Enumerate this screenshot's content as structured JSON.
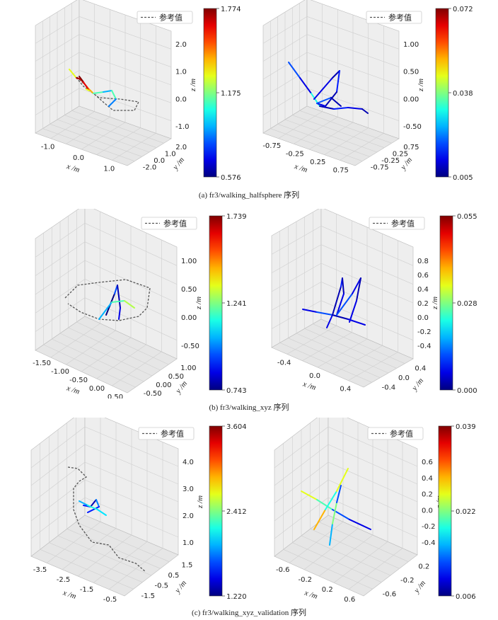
{
  "legend_label": "参考值",
  "axis_labels": {
    "x": "x /m",
    "y": "y /m",
    "z": "z /m"
  },
  "colors": {
    "reference": "#555555",
    "grid_fill": "#eeeeee",
    "grid_line": "#cfcfcf"
  },
  "captions": [
    "(a) fr3/walking_halfsphere 序列",
    "(b) fr3/walking_xyz 序列",
    "(c) fr3/walking_xyz_validation 序列"
  ],
  "chart_data": [
    {
      "type": "scatter",
      "title": "",
      "legend": [
        "参考值"
      ],
      "xticks": [
        "-1.0",
        "0.0",
        "1.0"
      ],
      "yticks": [
        "-2.0",
        "0.0",
        "1.0",
        "2.0"
      ],
      "zticks": [
        "-1.0",
        "0.0",
        "1.0",
        "2.0"
      ],
      "xlabel": "x /m",
      "ylabel": "y /m",
      "zlabel": "z /m",
      "colorbar": {
        "min": 0.576,
        "mid": 1.175,
        "max": 1.774,
        "ticks": [
          "1.774",
          "1.175",
          "0.576"
        ]
      }
    },
    {
      "type": "scatter",
      "title": "",
      "legend": [
        "参考值"
      ],
      "xticks": [
        "-0.75",
        "-0.25",
        "0.25",
        "0.75"
      ],
      "yticks": [
        "-0.75",
        "-0.25",
        "0.25",
        "0.75"
      ],
      "zticks": [
        "-0.50",
        "0.00",
        "0.50",
        "1.00"
      ],
      "xlabel": "x /m",
      "ylabel": "y /m",
      "zlabel": "z /m",
      "colorbar": {
        "min": 0.005,
        "mid": 0.038,
        "max": 0.072,
        "ticks": [
          "0.072",
          "0.038",
          "0.005"
        ]
      }
    },
    {
      "type": "scatter",
      "title": "",
      "legend": [
        "参考值"
      ],
      "xticks": [
        "-1.50",
        "-1.00",
        "-0.50",
        "0.00",
        "0.50"
      ],
      "yticks": [
        "-0.50",
        "0.00",
        "0.50",
        "1.00"
      ],
      "zticks": [
        "-0.50",
        "0.00",
        "0.50",
        "1.00"
      ],
      "xlabel": "x /m",
      "ylabel": "y /m",
      "zlabel": "z /m",
      "colorbar": {
        "min": 0.743,
        "mid": 1.241,
        "max": 1.739,
        "ticks": [
          "1.739",
          "1.241",
          "0.743"
        ]
      }
    },
    {
      "type": "scatter",
      "title": "",
      "legend": [
        "参考值"
      ],
      "xticks": [
        "-0.4",
        "0.0",
        "0.4"
      ],
      "yticks": [
        "-0.4",
        "0.0",
        "0.4"
      ],
      "zticks": [
        "-0.4",
        "-0.2",
        "0.0",
        "0.2",
        "0.4",
        "0.6",
        "0.8"
      ],
      "xlabel": "x /m",
      "ylabel": "y /m",
      "zlabel": "z /m",
      "colorbar": {
        "min": 0.0,
        "mid": 0.028,
        "max": 0.055,
        "ticks": [
          "0.055",
          "0.028",
          "0.000"
        ]
      }
    },
    {
      "type": "scatter",
      "title": "",
      "legend": [
        "参考值"
      ],
      "xticks": [
        "-3.5",
        "-2.5",
        "-1.5",
        "-0.5"
      ],
      "yticks": [
        "-1.5",
        "-0.5",
        "0.5",
        "1.5"
      ],
      "zticks": [
        "1.0",
        "2.0",
        "3.0",
        "4.0"
      ],
      "xlabel": "x /m",
      "ylabel": "y /m",
      "zlabel": "z /m",
      "colorbar": {
        "min": 1.22,
        "mid": 2.412,
        "max": 3.604,
        "ticks": [
          "3.604",
          "2.412",
          "1.220"
        ]
      }
    },
    {
      "type": "scatter",
      "title": "",
      "legend": [
        "参考值"
      ],
      "xticks": [
        "-0.6",
        "-0.2",
        "0.2",
        "0.6"
      ],
      "yticks": [
        "-0.6",
        "-0.2",
        "0.2"
      ],
      "zticks": [
        "-0.4",
        "-0.2",
        "0.0",
        "0.2",
        "0.4",
        "0.6"
      ],
      "xlabel": "x /m",
      "ylabel": "y /m",
      "zlabel": "z /m",
      "colorbar": {
        "min": 0.006,
        "mid": 0.022,
        "max": 0.039,
        "ticks": [
          "0.039",
          "0.022",
          "0.006"
        ]
      }
    }
  ]
}
